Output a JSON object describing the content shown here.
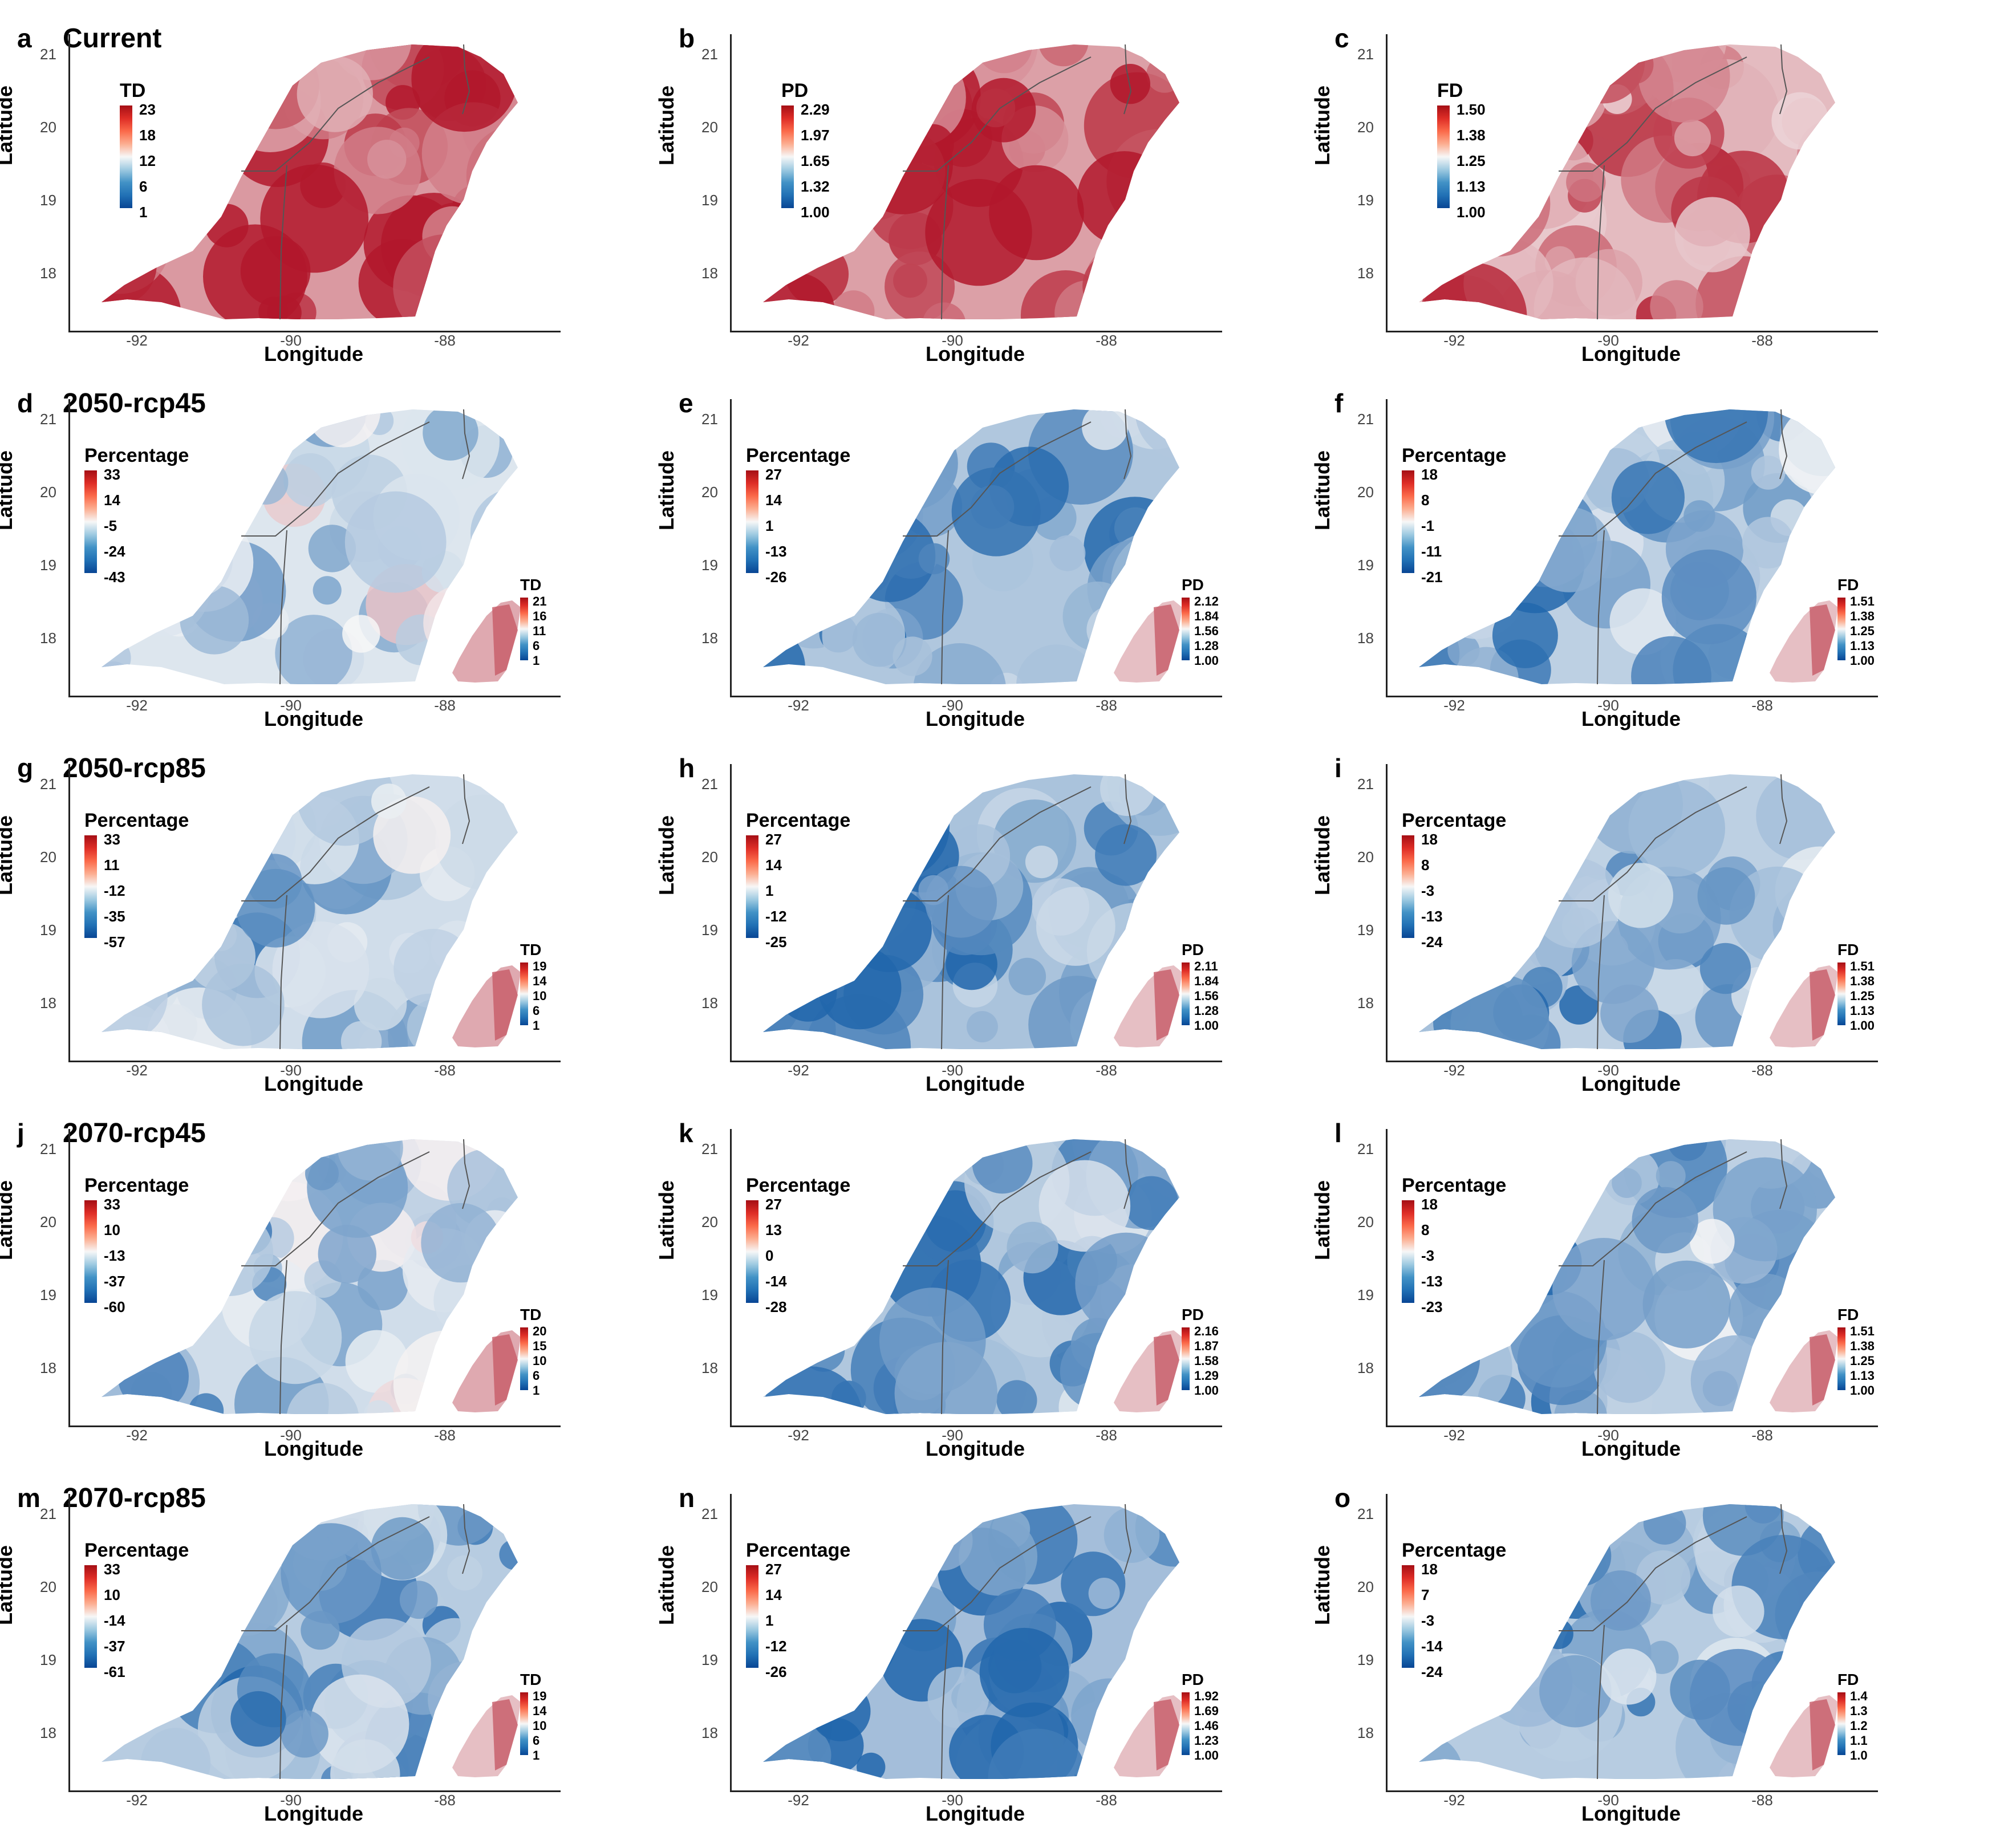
{
  "colors": {
    "high": "#b2182b",
    "mid": "#f7f7f7",
    "low": "#2166ac",
    "outline": "#555555",
    "axis": "#222222"
  },
  "axes": {
    "ylabel": "Latitude",
    "xlabel": "Longitude",
    "yticks": [
      "21",
      "20",
      "19",
      "18"
    ],
    "xticks": [
      "-92",
      "-90",
      "-88"
    ]
  },
  "panels": [
    {
      "letter": "a",
      "title": "Current",
      "legend": {
        "title": "TD",
        "labels": [
          "23",
          "18",
          "12",
          "6",
          "1"
        ]
      },
      "inset": null,
      "tone": 0.7
    },
    {
      "letter": "b",
      "title": "",
      "legend": {
        "title": "PD",
        "labels": [
          "2.29",
          "1.97",
          "1.65",
          "1.32",
          "1.00"
        ]
      },
      "inset": null,
      "tone": 0.65
    },
    {
      "letter": "c",
      "title": "",
      "legend": {
        "title": "FD",
        "labels": [
          "1.50",
          "1.38",
          "1.25",
          "1.13",
          "1.00"
        ]
      },
      "inset": null,
      "tone": 0.45
    },
    {
      "letter": "d",
      "title": "2050-rcp45",
      "legend": {
        "title": "Percentage",
        "labels": [
          "33",
          "14",
          "-5",
          "-24",
          "-43"
        ]
      },
      "inset": {
        "title": "TD",
        "labels": [
          "21",
          "16",
          "11",
          "6",
          "1"
        ]
      },
      "tone": -0.2
    },
    {
      "letter": "e",
      "title": "",
      "legend": {
        "title": "Percentage",
        "labels": [
          "27",
          "14",
          "1",
          "-13",
          "-26"
        ]
      },
      "inset": {
        "title": "PD",
        "labels": [
          "2.12",
          "1.84",
          "1.56",
          "1.28",
          "1.00"
        ]
      },
      "tone": -0.55
    },
    {
      "letter": "f",
      "title": "",
      "legend": {
        "title": "Percentage",
        "labels": [
          "18",
          "8",
          "-1",
          "-11",
          "-21"
        ]
      },
      "inset": {
        "title": "FD",
        "labels": [
          "1.51",
          "1.38",
          "1.25",
          "1.13",
          "1.00"
        ]
      },
      "tone": -0.45
    },
    {
      "letter": "g",
      "title": "2050-rcp85",
      "legend": {
        "title": "Percentage",
        "labels": [
          "33",
          "11",
          "-12",
          "-35",
          "-57"
        ]
      },
      "inset": {
        "title": "TD",
        "labels": [
          "19",
          "14",
          "10",
          "6",
          "1"
        ]
      },
      "tone": -0.3
    },
    {
      "letter": "h",
      "title": "",
      "legend": {
        "title": "Percentage",
        "labels": [
          "27",
          "14",
          "1",
          "-12",
          "-25"
        ]
      },
      "inset": {
        "title": "PD",
        "labels": [
          "2.11",
          "1.84",
          "1.56",
          "1.28",
          "1.00"
        ]
      },
      "tone": -0.6
    },
    {
      "letter": "i",
      "title": "",
      "legend": {
        "title": "Percentage",
        "labels": [
          "18",
          "8",
          "-3",
          "-13",
          "-24"
        ]
      },
      "inset": {
        "title": "FD",
        "labels": [
          "1.51",
          "1.38",
          "1.25",
          "1.13",
          "1.00"
        ]
      },
      "tone": -0.45
    },
    {
      "letter": "j",
      "title": "2070-rcp45",
      "legend": {
        "title": "Percentage",
        "labels": [
          "33",
          "10",
          "-13",
          "-37",
          "-60"
        ]
      },
      "inset": {
        "title": "TD",
        "labels": [
          "20",
          "15",
          "10",
          "6",
          "1"
        ]
      },
      "tone": -0.3
    },
    {
      "letter": "k",
      "title": "",
      "legend": {
        "title": "Percentage",
        "labels": [
          "27",
          "13",
          "0",
          "-14",
          "-28"
        ]
      },
      "inset": {
        "title": "PD",
        "labels": [
          "2.16",
          "1.87",
          "1.58",
          "1.29",
          "1.00"
        ]
      },
      "tone": -0.55
    },
    {
      "letter": "l",
      "title": "",
      "legend": {
        "title": "Percentage",
        "labels": [
          "18",
          "8",
          "-3",
          "-13",
          "-23"
        ]
      },
      "inset": {
        "title": "FD",
        "labels": [
          "1.51",
          "1.38",
          "1.25",
          "1.13",
          "1.00"
        ]
      },
      "tone": -0.45
    },
    {
      "letter": "m",
      "title": "2070-rcp85",
      "legend": {
        "title": "Percentage",
        "labels": [
          "33",
          "10",
          "-14",
          "-37",
          "-61"
        ]
      },
      "inset": {
        "title": "TD",
        "labels": [
          "19",
          "14",
          "10",
          "6",
          "1"
        ]
      },
      "tone": -0.5
    },
    {
      "letter": "n",
      "title": "",
      "legend": {
        "title": "Percentage",
        "labels": [
          "27",
          "14",
          "1",
          "-12",
          "-26"
        ]
      },
      "inset": {
        "title": "PD",
        "labels": [
          "1.92",
          "1.69",
          "1.46",
          "1.23",
          "1.00"
        ]
      },
      "tone": -0.65
    },
    {
      "letter": "o",
      "title": "",
      "legend": {
        "title": "Percentage",
        "labels": [
          "18",
          "7",
          "-3",
          "-14",
          "-24"
        ]
      },
      "inset": {
        "title": "FD",
        "labels": [
          "1.4",
          "1.3",
          "1.2",
          "1.1",
          "1.0"
        ]
      },
      "tone": -0.5
    }
  ]
}
